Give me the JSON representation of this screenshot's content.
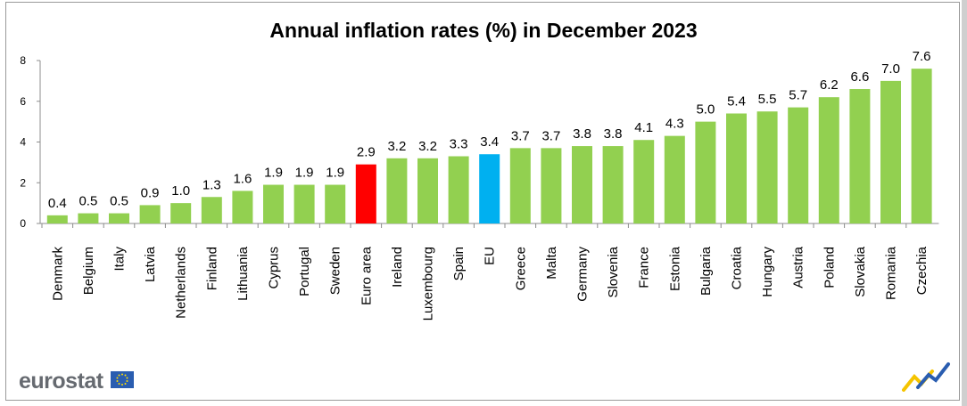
{
  "chart_data": {
    "type": "bar",
    "title": "Annual inflation rates (%) in December 2023",
    "xlabel": "",
    "ylabel": "",
    "ylim": [
      0,
      8
    ],
    "yticks": [
      0,
      2,
      4,
      6,
      8
    ],
    "grid": false,
    "legend": "none",
    "categories": [
      "Denmark",
      "Belgium",
      "Italy",
      "Latvia",
      "Netherlands",
      "Finland",
      "Lithuania",
      "Cyprus",
      "Portugal",
      "Sweden",
      "Euro area",
      "Ireland",
      "Luxembourg",
      "Spain",
      "EU",
      "Greece",
      "Malta",
      "Germany",
      "Slovenia",
      "France",
      "Estonia",
      "Bulgaria",
      "Croatia",
      "Hungary",
      "Austria",
      "Poland",
      "Slovakia",
      "Romania",
      "Czechia"
    ],
    "values": [
      0.4,
      0.5,
      0.5,
      0.9,
      1.0,
      1.3,
      1.6,
      1.9,
      1.9,
      1.9,
      2.9,
      3.2,
      3.2,
      3.3,
      3.4,
      3.7,
      3.7,
      3.8,
      3.8,
      4.1,
      4.3,
      5.0,
      5.4,
      5.5,
      5.7,
      6.2,
      6.6,
      7.0,
      7.6
    ],
    "value_labels": [
      "0.4",
      "0.5",
      "0.5",
      "0.9",
      "1.0",
      "1.3",
      "1.6",
      "1.9",
      "1.9",
      "1.9",
      "2.9",
      "3.2",
      "3.2",
      "3.3",
      "3.4",
      "3.7",
      "3.7",
      "3.8",
      "3.8",
      "4.1",
      "4.3",
      "5.0",
      "5.4",
      "5.5",
      "5.7",
      "6.2",
      "6.6",
      "7.0",
      "7.6"
    ],
    "colors": {
      "default": "#92d050",
      "Euro area": "#ff0000",
      "EU": "#00b0f0"
    }
  },
  "branding": {
    "logo_text": "eurostat",
    "flag_icon": "eu-flag-icon",
    "corner_icon": "eurostat-mark-icon"
  }
}
